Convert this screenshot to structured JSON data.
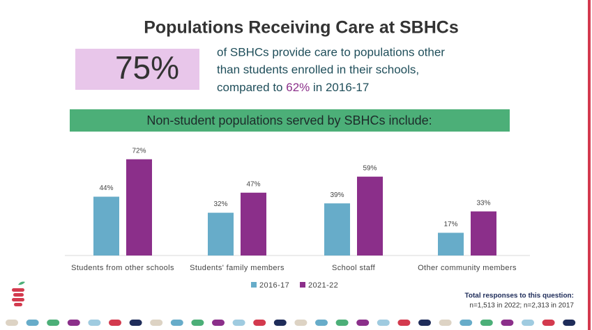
{
  "header": {
    "title": "Populations Receiving Care at SBHCs",
    "stat": "75%",
    "statement": [
      "of SBHCs provide care to populations other",
      "than students enrolled in their schools,",
      "compared to",
      "62%",
      "in 2016-17"
    ],
    "banner": "Non-student populations served by SBHCs include:"
  },
  "chart_data": {
    "type": "bar",
    "categories": [
      "Students from other schools",
      "Students' family members",
      "School staff",
      "Other community members"
    ],
    "series": [
      {
        "name": "2016-17",
        "color": "#67acc9",
        "values": [
          44,
          32,
          39,
          17
        ],
        "value_labels": [
          "44%",
          "32%",
          "39%",
          "17%"
        ]
      },
      {
        "name": "2021-22",
        "color": "#8b2f8a",
        "values": [
          72,
          47,
          59,
          33
        ],
        "value_labels": [
          "72%",
          "47%",
          "59%",
          "33%"
        ]
      }
    ],
    "legend": "bottom"
  },
  "footnote": {
    "title": "Total responses to this question:",
    "text": "n=1,513 in 2022; n=2,313 in 2017"
  }
}
